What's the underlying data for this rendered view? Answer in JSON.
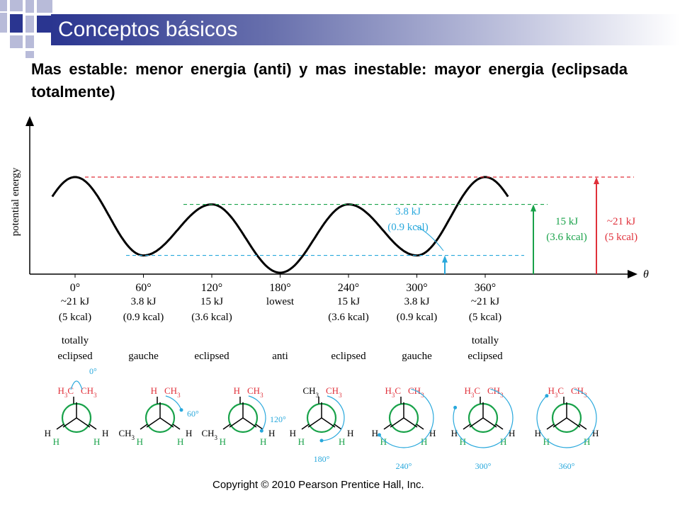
{
  "slide": {
    "title": "Conceptos básicos",
    "subtitle": "Mas estable: menor energia (anti) y mas inestable: mayor energia (eclipsada totalmente)",
    "copyright": "Copyright © 2010 Pearson Prentice Hall, Inc."
  },
  "colors": {
    "title_bar": "#2a3590",
    "squares_dark": "#2a3590",
    "squares_light": "#b8bbd9",
    "red": "#e0303a",
    "green": "#19a24a",
    "cyan": "#28a8dc"
  },
  "chart_data": {
    "type": "line",
    "ylabel": "potential energy",
    "xlabel": "θ",
    "x": [
      0,
      60,
      120,
      180,
      240,
      300,
      360
    ],
    "y_kJ": [
      21,
      3.8,
      15,
      0,
      15,
      3.8,
      21
    ],
    "tick_labels": [
      {
        "angle": "0°",
        "energy": "~21 kJ",
        "kcal": "(5 kcal)",
        "name_lines": [
          "totally",
          "eclipsed"
        ]
      },
      {
        "angle": "60°",
        "energy": "3.8 kJ",
        "kcal": "(0.9 kcal)",
        "name_lines": [
          "gauche"
        ]
      },
      {
        "angle": "120°",
        "energy": "15 kJ",
        "kcal": "(3.6 kcal)",
        "name_lines": [
          "eclipsed"
        ]
      },
      {
        "angle": "180°",
        "energy": "lowest",
        "kcal": "",
        "name_lines": [
          "anti"
        ]
      },
      {
        "angle": "240°",
        "energy": "15 kJ",
        "kcal": "(3.6 kcal)",
        "name_lines": [
          "eclipsed"
        ]
      },
      {
        "angle": "300°",
        "energy": "3.8 kJ",
        "kcal": "(0.9 kcal)",
        "name_lines": [
          "gauche"
        ]
      },
      {
        "angle": "360°",
        "energy": "~21 kJ",
        "kcal": "(5 kcal)",
        "name_lines": [
          "totally",
          "eclipsed"
        ]
      }
    ],
    "annotations": [
      {
        "text": [
          "3.8 kJ",
          "(0.9 kcal)"
        ],
        "color": "#28a8dc"
      },
      {
        "text": [
          "15 kJ",
          "(3.6 kcal)"
        ],
        "color": "#19a24a"
      },
      {
        "text": [
          "~21 kJ",
          "(5 kcal)"
        ],
        "color": "#e0303a"
      }
    ],
    "newman": [
      {
        "front": [
          "H",
          "H",
          "H3C"
        ],
        "back": [
          "CH3",
          "H",
          "H"
        ],
        "angle_label": "0°"
      },
      {
        "front": [
          "H",
          "H",
          "H"
        ],
        "back": [
          "CH3",
          "CH3",
          "H"
        ],
        "angle_label": "60°"
      },
      {
        "front": [
          "H",
          "H",
          "H"
        ],
        "back": [
          "CH3",
          "CH3",
          "H"
        ],
        "angle_label": "120°"
      },
      {
        "front": [
          "H",
          "H",
          "CH3"
        ],
        "back": [
          "CH3",
          "H",
          "H"
        ],
        "angle_label": "180°"
      },
      {
        "front": [
          "H",
          "H",
          "H3C"
        ],
        "back": [
          "CH3",
          "H",
          "H"
        ],
        "angle_label": "240°"
      },
      {
        "front": [
          "H",
          "H",
          "H3C"
        ],
        "back": [
          "CH3",
          "H",
          "H"
        ],
        "angle_label": "300°"
      },
      {
        "front": [
          "H",
          "H",
          "H3C"
        ],
        "back": [
          "CH3",
          "H",
          "H"
        ],
        "angle_label": "360°"
      }
    ]
  }
}
